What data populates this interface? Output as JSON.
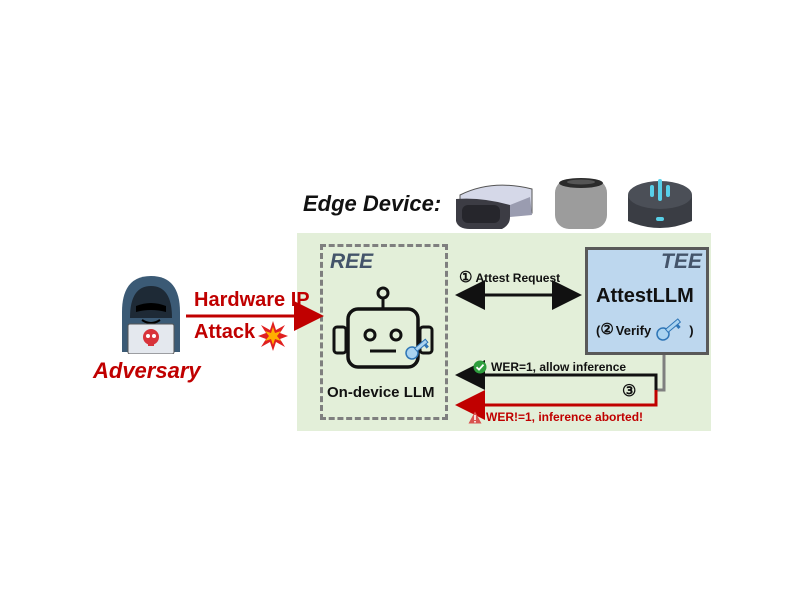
{
  "edge_device_title": "Edge Device:",
  "adversary": {
    "label": "Adversary"
  },
  "attack": {
    "line1": "Hardware IP",
    "line2": "Attack"
  },
  "ree": {
    "label": "REE",
    "model_label": "On-device LLM"
  },
  "tee": {
    "label": "TEE",
    "service_label": "AttestLLM",
    "verify_open": "(",
    "verify_text": "Verify",
    "verify_close": ")"
  },
  "steps": {
    "s1": {
      "num": "①",
      "label": "Attest Request"
    },
    "s2": {
      "num": "②"
    },
    "s3": {
      "num": "③"
    }
  },
  "results": {
    "allow": "WER=1, allow inference",
    "abort": "WER!=1, inference aborted!"
  },
  "colors": {
    "attack_red": "#c00000",
    "panel_green": "#e3efd9",
    "tee_blue": "#bdd7ee",
    "ree_dash": "#7f7f7f"
  }
}
